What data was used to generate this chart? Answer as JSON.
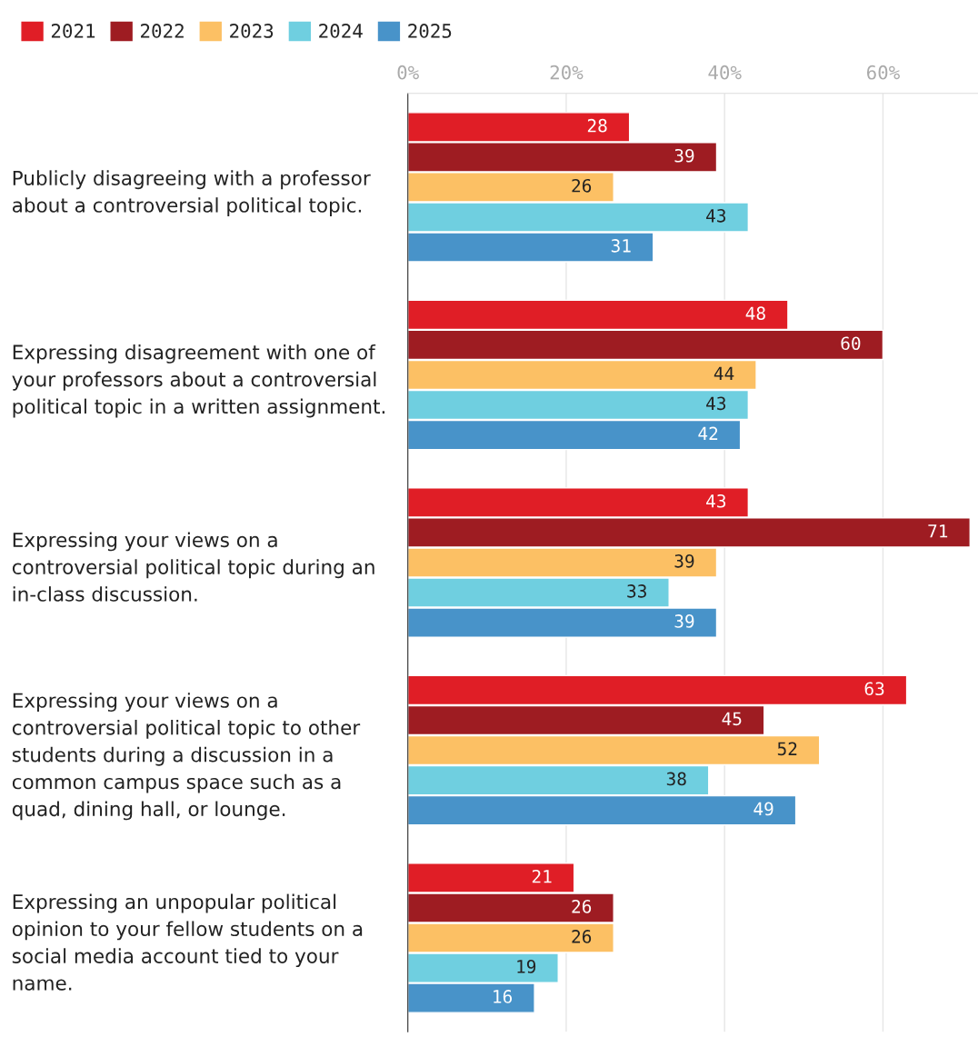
{
  "chart_data": {
    "type": "bar",
    "orientation": "horizontal",
    "categories": [
      "Publicly disagreeing with a professor\nabout a controversial political topic.",
      "Expressing disagreement with one of\nyour professors about a controversial\npolitical topic in a written assignment.",
      "Expressing your views on a\ncontroversial political topic during an\nin-class discussion.",
      "Expressing your views on a\ncontroversial political topic to other\nstudents during a discussion in a\ncommon campus space such as a\nquad, dining hall, or lounge.",
      "Expressing an unpopular political\nopinion to your fellow students on a\nsocial media account tied to your\nname."
    ],
    "series": [
      {
        "name": "2021",
        "color": "#e01e26",
        "values": [
          28,
          48,
          43,
          63,
          21
        ]
      },
      {
        "name": "2022",
        "color": "#9e1c22",
        "values": [
          39,
          60,
          71,
          45,
          26
        ]
      },
      {
        "name": "2023",
        "color": "#fcc064",
        "values": [
          26,
          44,
          39,
          52,
          26
        ]
      },
      {
        "name": "2024",
        "color": "#6fcfe0",
        "values": [
          43,
          43,
          33,
          38,
          19
        ]
      },
      {
        "name": "2025",
        "color": "#4893c9",
        "values": [
          31,
          42,
          39,
          49,
          16
        ]
      }
    ],
    "xlim": [
      0,
      72
    ],
    "xticks": [
      {
        "value": 0,
        "label": "0%"
      },
      {
        "value": 20,
        "label": "20%"
      },
      {
        "value": 40,
        "label": "40%"
      },
      {
        "value": 60,
        "label": "60%"
      }
    ],
    "grid": "x",
    "legend": "top left",
    "data_labels": true
  }
}
